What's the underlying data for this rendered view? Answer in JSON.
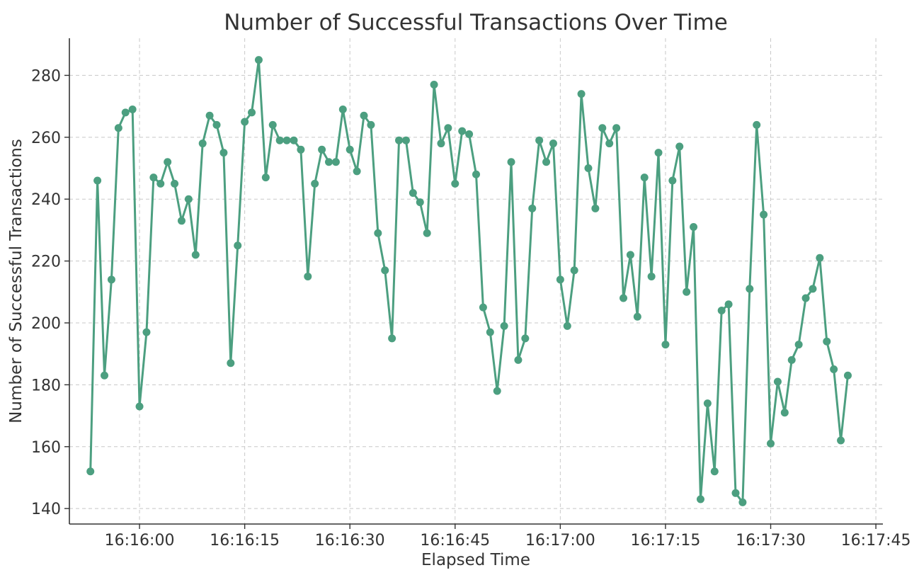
{
  "colors": {
    "series": "#4c9f80",
    "grid": "#c8c8c8",
    "axis": "#333333",
    "background": "#ffffff"
  },
  "chart_data": {
    "type": "line",
    "title": "Number of Successful Transactions Over Time",
    "xlabel": "Elapsed Time",
    "ylabel": "Number of Successful Transactions",
    "grid": true,
    "marker": "circle",
    "x_start_time": "16:15:53",
    "x_step_seconds": 1,
    "xlim": [
      "16:15:50",
      "16:17:46"
    ],
    "ylim": [
      135,
      292
    ],
    "x_ticks": [
      "16:16:00",
      "16:16:15",
      "16:16:30",
      "16:16:45",
      "16:17:00",
      "16:17:15",
      "16:17:30",
      "16:17:45"
    ],
    "y_ticks": [
      140,
      160,
      180,
      200,
      220,
      240,
      260,
      280
    ],
    "series": [
      {
        "values": [
          152,
          246,
          183,
          214,
          263,
          268,
          269,
          173,
          197,
          247,
          245,
          252,
          245,
          233,
          240,
          222,
          258,
          267,
          264,
          255,
          187,
          225,
          265,
          268,
          285,
          247,
          264,
          259,
          259,
          259,
          256,
          215,
          245,
          256,
          252,
          252,
          269,
          256,
          249,
          267,
          264,
          229,
          217,
          195,
          259,
          259,
          242,
          239,
          229,
          277,
          258,
          263,
          245,
          262,
          261,
          248,
          205,
          197,
          178,
          199,
          252,
          188,
          195,
          237,
          259,
          252,
          258,
          214,
          199,
          217,
          274,
          250,
          237,
          263,
          258,
          263,
          208,
          222,
          202,
          247,
          215,
          255,
          193,
          246,
          257,
          210,
          231,
          143,
          174,
          152,
          204,
          206,
          145,
          142,
          211,
          264,
          235,
          161,
          181,
          171,
          188,
          193,
          208,
          211,
          221,
          194,
          185,
          162,
          183
        ]
      }
    ]
  }
}
